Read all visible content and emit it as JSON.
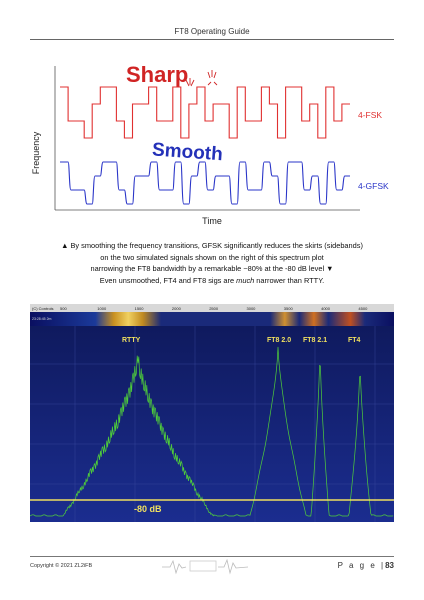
{
  "header": {
    "title": "FT8 Operating Guide"
  },
  "figure_top": {
    "ylabel": "Frequency",
    "xlabel": "Time",
    "label_sharp": "Sharp",
    "label_smooth": "Smooth",
    "series_fsk": "4-FSK",
    "series_gfsk": "4-GFSK",
    "colors": {
      "fsk": "#e03030",
      "gfsk": "#2a35c8",
      "sharp": "#d02424",
      "smooth": "#2431b8"
    }
  },
  "caption": {
    "line1": "▲ By smoothing the frequency transitions, GFSK significantly reduces the skirts (sidebands)",
    "line2": "on the two simulated signals shown on the right of this spectrum plot",
    "line3": "narrowing the FT8 bandwidth by a remarkable ~80% at the -80 dB level ▼",
    "line4_a": "Even unsmoothed, FT4 and FT8 sigs are ",
    "line4_em": "much",
    "line4_b": " narrower than RTTY."
  },
  "spectrum": {
    "toolbar_left": "(C) Controls",
    "waterfall_time": "23:28:45   2m",
    "freq_ticks": [
      "500",
      "1000",
      "1500",
      "2000",
      "2500",
      "3000",
      "3500",
      "4000",
      "4500",
      "500"
    ],
    "labels": {
      "rtty": "RTTY",
      "ft8_20": "FT8 2.0",
      "ft8_21": "FT8 2.1",
      "ft4": "FT4"
    },
    "ref_level": "-80 dB",
    "colors": {
      "bg": "#1a2a8a",
      "trace": "#4fcf3a",
      "ref": "#f0e060"
    }
  },
  "footer": {
    "copyright": "Copyright © 2021 ZL2iFB",
    "page_label": "P a g e",
    "page_number": "83"
  }
}
